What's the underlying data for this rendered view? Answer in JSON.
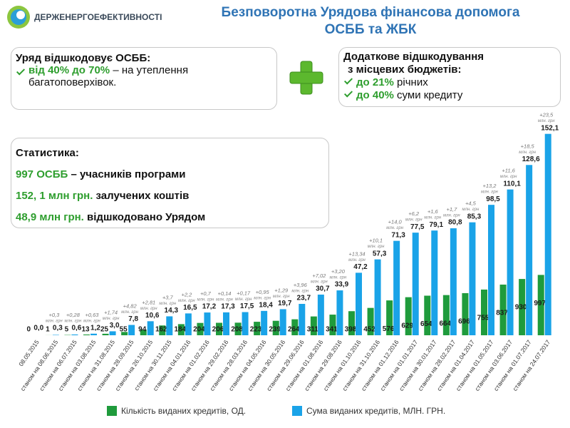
{
  "header": {
    "logo_text": "ДЕРЖЕНЕРГОЕФЕКТИВНОСТІ",
    "title_lines": [
      "Безповоротна Урядова фінансова допомога",
      "ОСББ та ЖБК"
    ]
  },
  "boxes": {
    "government": {
      "heading": "Уряд відшкодовує ОСББ:",
      "highlight": "від 40% до 70%",
      "text": "– на утеплення багатоповерхівок."
    },
    "local": {
      "heading_lines": [
        "Додаткове відшкодування",
        "з місцевих бюджетів:"
      ],
      "items": [
        {
          "highlight": "до 21%",
          "text": "річних"
        },
        {
          "highlight": "до 40%",
          "text": "суми кредиту"
        }
      ]
    },
    "statistics": {
      "heading": "Статистика:",
      "items": [
        {
          "highlight": "997 ОСББ",
          "text": "– учасників програми"
        },
        {
          "highlight": "152, 1 млн грн.",
          "text": "залучених коштів"
        },
        {
          "highlight": "48,9 млн грн.",
          "text": "відшкодовано Урядом"
        }
      ]
    }
  },
  "chart_data": {
    "type": "bar",
    "categories": [
      "08.05.2015",
      "станом на 08.06.2015",
      "станом на 06.07.2015",
      "станом на 03.08.2015",
      "станом на 31.08.2015",
      "станом на 28.09.2015",
      "станом на 26.10.2015",
      "станом на 30.11.2015",
      "станом на 04.01.2016",
      "станом на 01.02.2016",
      "станом на 29.02.2016",
      "станом на 28.03.2016",
      "станом на 04.05.2016",
      "станом на 30.05.2016",
      "станом на 29.06.2016",
      "станом на 01.08.2016",
      "станом на 29.08.2016",
      "станом на 01.10.2016",
      "станом на 31.10.2016",
      "станом на 01.12.2016",
      "станом на 01.01.2017",
      "станом на 30.01.2017",
      "станом на 28.02.2017",
      "станом на 01.04.2017",
      "станом на 01.05.2017",
      "станом на 03.06.2017",
      "станом на 01.07.2017",
      "станом на 24.07.2017"
    ],
    "series": [
      {
        "name": "Кількість виданих кредитів, ОД.",
        "color": "#1f9b3c",
        "axis": "y2",
        "values": [
          0,
          1,
          5,
          13,
          25,
          55,
          94,
          162,
          184,
          204,
          206,
          208,
          223,
          239,
          264,
          311,
          341,
          398,
          452,
          576,
          629,
          654,
          664,
          696,
          755,
          837,
          930,
          997
        ]
      },
      {
        "name": "Сума виданих кредитів, МЛН. ГРН.",
        "color": "#1aa3e8",
        "values": [
          0,
          0.3,
          0.6,
          1.2,
          3.0,
          7.8,
          10.6,
          14.3,
          16.5,
          17.2,
          17.3,
          17.5,
          18.4,
          19.7,
          23.7,
          30.7,
          33.9,
          47.2,
          57.3,
          71.3,
          77.5,
          79.1,
          80.8,
          85.3,
          98.5,
          110.1,
          128.6,
          152.1
        ],
        "value_labels": [
          "0,0",
          "0,3",
          "0,6",
          "1,2",
          "3,0",
          "7,8",
          "10,6",
          "14,3",
          "16,5",
          "17,2",
          "17,3",
          "17,5",
          "18,4",
          "19,7",
          "23,7",
          "30,7",
          "33,9",
          "47,2",
          "57,3",
          "71,3",
          "77,5",
          "79,1",
          "80,8",
          "85,3",
          "98,5",
          "110,1",
          "128,6",
          "152,1"
        ],
        "increments": [
          null,
          "+0,3",
          "+0,28",
          "+0,63",
          "+1,74",
          "+4,82",
          "+2,81",
          "+3,7",
          "+2,2",
          "+0,7",
          "+0,14",
          "+0,17",
          "+0,95",
          "+1,29",
          "+3,96",
          "+7,02",
          "+3,20",
          "+13,34",
          "+10,1",
          "+14,0",
          "+6,2",
          "+1,6",
          "+1,7",
          "+4,5",
          "+13,2",
          "+11,6",
          "+18,5",
          "+23,5"
        ]
      }
    ],
    "increment_unit": "млн. грн",
    "ylim": [
      0,
      160
    ],
    "y2lim": [
      0,
      3500
    ]
  }
}
